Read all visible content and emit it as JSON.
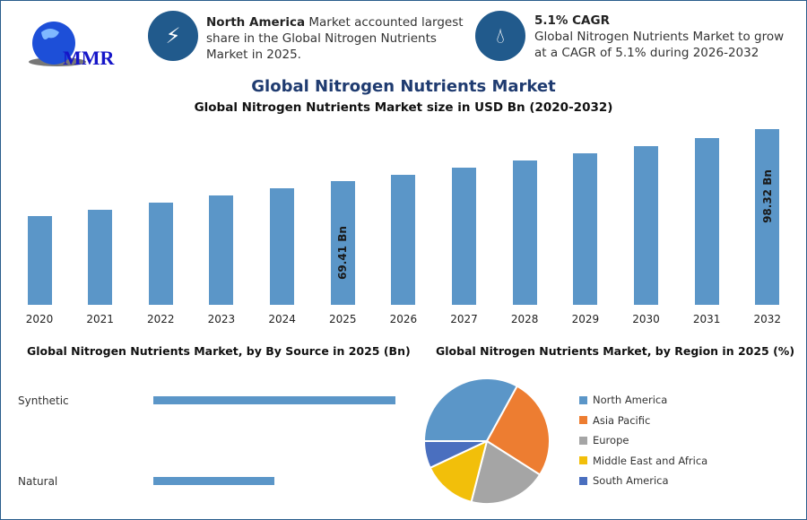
{
  "header": {
    "logo_text": "MMR",
    "card1": {
      "icon": "lightning-icon",
      "bold": "North America",
      "text": " Market accounted largest share in the Global Nitrogen Nutrients Market in 2025."
    },
    "card2": {
      "icon": "drop-icon",
      "bold": "5.1% CAGR",
      "text": "Global Nitrogen Nutrients Market to grow at a CAGR of 5.1% during 2026-2032"
    }
  },
  "colors": {
    "bar": "#5b96c8",
    "accent": "#215a8c",
    "title": "#1f3b70"
  },
  "chart_data": [
    {
      "type": "bar",
      "title": "Global Nitrogen Nutrients Market",
      "subtitle": "Global Nitrogen Nutrients Market size in USD Bn (2020-2032)",
      "categories": [
        "2020",
        "2021",
        "2022",
        "2023",
        "2024",
        "2025",
        "2026",
        "2027",
        "2028",
        "2029",
        "2030",
        "2031",
        "2032"
      ],
      "values": [
        49.5,
        53.0,
        57.0,
        61.0,
        65.3,
        69.41,
        72.95,
        76.67,
        80.58,
        84.69,
        89.0,
        93.55,
        98.32
      ],
      "data_labels": {
        "2025": "69.41 Bn",
        "2032": "98.32 Bn"
      },
      "ylim": [
        0,
        100
      ]
    },
    {
      "type": "bar",
      "orientation": "horizontal",
      "title": "Global Nitrogen Nutrients Market, by By Source in 2025 (Bn)",
      "categories": [
        "Synthetic",
        "Natural"
      ],
      "values": [
        46.3,
        23.1
      ]
    },
    {
      "type": "pie",
      "title": "Global Nitrogen Nutrients Market, by Region in 2025 (%)",
      "legend": "right",
      "labels": [
        "North America",
        "Asia Pacific",
        "Europe",
        "Middle East and Africa",
        "South America"
      ],
      "values": [
        33,
        26,
        20,
        14,
        7
      ],
      "colors": [
        "#5b96c8",
        "#ed7d31",
        "#a5a5a5",
        "#f2bf0a",
        "#4a6fbf"
      ]
    }
  ]
}
